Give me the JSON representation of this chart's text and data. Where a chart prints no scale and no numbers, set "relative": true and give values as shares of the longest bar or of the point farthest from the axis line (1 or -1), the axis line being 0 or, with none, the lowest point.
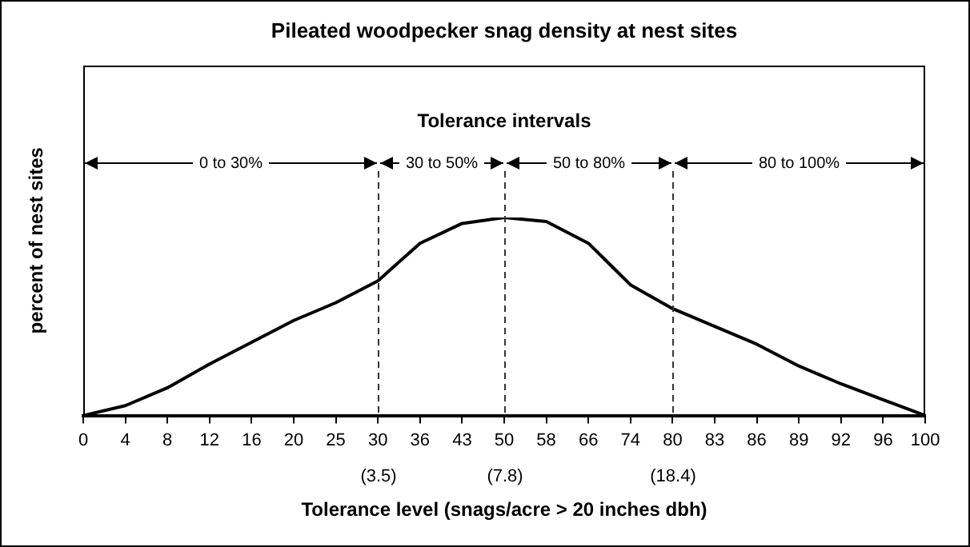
{
  "chart_data": {
    "type": "line",
    "title": "Pileated woodpecker snag density at nest sites",
    "xlabel": "Tolerance level (snags/acre > 20 inches dbh)",
    "ylabel": "percent of nest sites",
    "categories": [
      "0",
      "4",
      "8",
      "12",
      "16",
      "20",
      "25",
      "30",
      "36",
      "43",
      "50",
      "58",
      "66",
      "74",
      "80",
      "83",
      "86",
      "89",
      "92",
      "96",
      "100"
    ],
    "series": [
      {
        "color": "#000000",
        "values": [
          0,
          0.05,
          0.14,
          0.26,
          0.37,
          0.48,
          0.57,
          0.68,
          0.87,
          0.97,
          1,
          0.98,
          0.87,
          0.66,
          0.54,
          0.45,
          0.36,
          0.25,
          0.16,
          0.08,
          0
        ]
      }
    ],
    "relative": true,
    "marker": "none",
    "line_style": "solid",
    "grid": false,
    "legend": false,
    "annotations": [
      "Tolerance intervals",
      "0 to 30%",
      "30 to 50%",
      "50 to 80%",
      "80 to 100%",
      "(3.5)",
      "(7.8)",
      "(18.4)"
    ],
    "ref_lines": [
      {
        "axis": "x",
        "value": "30",
        "line_style": "dashed"
      },
      {
        "axis": "x",
        "value": "50",
        "line_style": "dashed"
      },
      {
        "axis": "x",
        "value": "80",
        "line_style": "dashed"
      }
    ]
  }
}
